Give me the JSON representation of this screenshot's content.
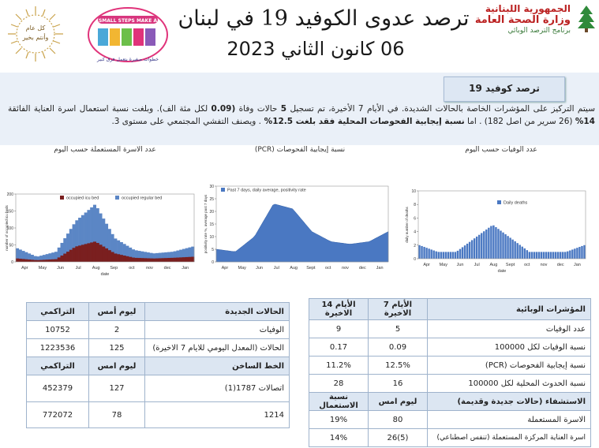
{
  "header": {
    "title": "ترصد عدوى الكوفيد 19 في لبنان",
    "date": "06 كانون الثاني 2023",
    "moh_line1": "الجمهورية اللبنانية",
    "moh_line2": "وزارة الصحة العامة",
    "moh_line3": "برنامج الترصد الوبائي",
    "wreath_line1": "كل عام",
    "wreath_line2": "وأنتم بخير",
    "campaign_head": "SMALL STEPS MAKE A BIG IMPACT",
    "campaign_text": "خطوات صغيرة بتعمل فرق كبير"
  },
  "summary": {
    "tab_title": "ترصد كوفيد 19",
    "paragraph_a": "سيتم التركيز على المؤشرات الخاصة بالحالات الشديدة. في الأيام 7 الأخيرة، تم تسجيل ",
    "deaths_count": "5",
    "paragraph_b": " حالات وفاة  ",
    "death_rate": "(0.09",
    "paragraph_c": " لكل مئة الف). وبلغت نسبة استعمال اسرة العناية الفائقة ",
    "icu_pct": "14%",
    "paragraph_d": " (26 سرير من اصل 182) . اما ",
    "pcr_text": "نسبة إيجابية الفحوصات المحلية فقد بلغت 12.5% ",
    "paragraph_e": ". ويصنف التفشي المجتمعي على مستوى 3."
  },
  "charts": {
    "beds_title": "عدد الاسرة المستعملة حسب اليوم",
    "pcr_title": "نسبة إيجابية الفحوصات (PCR)",
    "deaths_title": "عدد الوفيات حسب اليوم",
    "beds_legend_icu": "occupied icu bed",
    "beds_legend_regular": "occupied regular bed",
    "beds_ylabel": "number of occupied icu beds",
    "beds_xlabel": "date",
    "pcr_legend": "Past 7 days, daily average, positivity rate",
    "pcr_ylabel": "positivity rate %, average past 7 days",
    "deaths_legend": "Daily deaths",
    "deaths_ylabel": "daily number of deaths",
    "deaths_xlabel": "date",
    "months": [
      "Apr",
      "May",
      "Jun",
      "Jul",
      "Aug",
      "Sept",
      "oct",
      "nov",
      "dec",
      "Jan"
    ],
    "months_beds": [
      "Apr",
      "May",
      "Jun",
      "Jul",
      "Aug",
      "Sep",
      "oct",
      "nov",
      "dec",
      "Jan"
    ],
    "beds_yticks": [
      "200",
      "150",
      "100",
      "50",
      "0"
    ],
    "pcr_yticks": [
      "30",
      "25",
      "20",
      "15",
      "10",
      "5",
      "0"
    ],
    "deaths_yticks": [
      "10",
      "8",
      "6",
      "4",
      "2",
      "0"
    ]
  },
  "chart_data": [
    {
      "type": "area",
      "title": "عدد الاسرة المستعملة حسب اليوم",
      "ylabel": "number of occupied icu beds",
      "xlabel": "date",
      "ylim": [
        0,
        200
      ],
      "categories": [
        "Apr",
        "May",
        "Jun",
        "Jul",
        "Aug",
        "Sep",
        "oct",
        "nov",
        "dec",
        "Jan"
      ],
      "series": [
        {
          "name": "occupied regular bed",
          "values": [
            40,
            15,
            30,
            120,
            170,
            70,
            35,
            25,
            30,
            45
          ]
        },
        {
          "name": "occupied icu bed",
          "values": [
            10,
            5,
            8,
            45,
            60,
            25,
            12,
            10,
            12,
            15
          ]
        }
      ]
    },
    {
      "type": "line",
      "title": "نسبة إيجابية الفحوصات (PCR)",
      "ylabel": "positivity rate %, average past 7 days",
      "ylim": [
        0,
        30
      ],
      "categories": [
        "Apr",
        "May",
        "Jun",
        "Jul",
        "Aug",
        "Sept",
        "oct",
        "nov",
        "dec",
        "Jan"
      ],
      "series": [
        {
          "name": "Past 7 days, daily average, positivity rate",
          "values": [
            5,
            4,
            10,
            23,
            21,
            12,
            8,
            7,
            8,
            12
          ]
        }
      ]
    },
    {
      "type": "bar",
      "title": "عدد الوفيات حسب اليوم",
      "ylabel": "daily number of deaths",
      "xlabel": "date",
      "ylim": [
        0,
        10
      ],
      "categories": [
        "Apr",
        "May",
        "Jun",
        "Jul",
        "Aug",
        "Sept",
        "oct",
        "nov",
        "dec",
        "Jan"
      ],
      "series": [
        {
          "name": "Daily deaths",
          "values": [
            2,
            1,
            1,
            3,
            5,
            3,
            1,
            1,
            1,
            2
          ]
        }
      ]
    }
  ],
  "table_left": {
    "h_new": "الحالات الجديدة",
    "h_yesterday": "ليوم أمس",
    "h_cumulative": "التراكمي",
    "rows": [
      {
        "label": "الوفيات",
        "yesterday": "2",
        "cumulative": "10752"
      },
      {
        "label": "الحالات (المعدل اليومي للايام 7 الاخيرة)",
        "yesterday": "125",
        "cumulative": "1223536"
      }
    ],
    "h_hotline": "الخط الساخن",
    "h_yesterday2": "ليوم امس",
    "h_cumulative2": "التراكمي",
    "rows2": [
      {
        "label": "اتصالات 1787(1)",
        "yesterday": "127",
        "cumulative": "452379"
      },
      {
        "label": "1214",
        "yesterday": "78",
        "cumulative": "772072"
      }
    ]
  },
  "table_right": {
    "h_indicators": "المؤشرات الوبائية",
    "h_7days": "الأيام 7 الاخيرة",
    "h_14days": "الأيام 14 الاخيرة",
    "rows": [
      {
        "label": "عدد الوفيات",
        "d7": "5",
        "d14": "9"
      },
      {
        "label": "نسبة الوفيات لكل 100000",
        "d7": "0.09",
        "d14": "0.17"
      },
      {
        "label": "نسبة إيجابية الفحوصات (PCR)",
        "d7": "12.5%",
        "d14": "11.2%"
      },
      {
        "label": "نسبة الحدوث المحلية لكل 100000",
        "d7": "16",
        "d14": "28"
      }
    ],
    "h_hosp": "الاستشفاء (حالات جديدة وقديمة)",
    "h_yesterday": "ليوم امس",
    "h_usage": "نسبة الاستعمال",
    "rows2": [
      {
        "label": "الاسرة المستعملة",
        "yesterday": "80",
        "usage": "19%"
      },
      {
        "label": "اسرة العناية المركزة المستعملة (تنفس اصطناعي)",
        "yesterday": "26(5)",
        "usage": "14%"
      }
    ]
  }
}
